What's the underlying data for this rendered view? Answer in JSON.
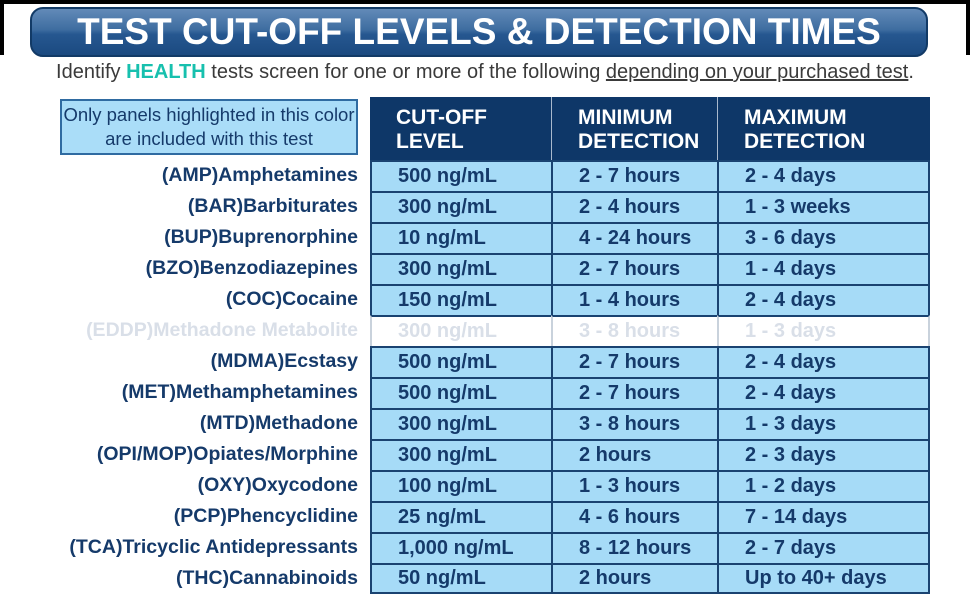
{
  "banner": {
    "title": "TEST CUT-OFF LEVELS & DETECTION TIMES"
  },
  "subtitle": {
    "prefix": "Identify ",
    "brand": "HEALTH",
    "middle": " tests screen for one or more of the following ",
    "underlined": "depending on your purchased test",
    "suffix": "."
  },
  "table": {
    "note": "Only panels highlighted in this color are included with this test",
    "headers": [
      {
        "line1": "CUT-OFF",
        "line2": "LEVEL"
      },
      {
        "line1": "MINIMUM",
        "line2": "DETECTION"
      },
      {
        "line1": "MAXIMUM",
        "line2": "DETECTION"
      }
    ],
    "rows": [
      {
        "name": "(AMP)Amphetamines",
        "cutoff": "500 ng/mL",
        "min": "2 - 7 hours",
        "max": "2 - 4 days",
        "included": true
      },
      {
        "name": "(BAR)Barbiturates",
        "cutoff": "300 ng/mL",
        "min": "2 - 4 hours",
        "max": "1 - 3 weeks",
        "included": true
      },
      {
        "name": "(BUP)Buprenorphine",
        "cutoff": "10 ng/mL",
        "min": "4 - 24 hours",
        "max": "3 - 6 days",
        "included": true
      },
      {
        "name": "(BZO)Benzodiazepines",
        "cutoff": "300 ng/mL",
        "min": "2 - 7 hours",
        "max": "1 - 4 days",
        "included": true
      },
      {
        "name": "(COC)Cocaine",
        "cutoff": "150 ng/mL",
        "min": "1 - 4 hours",
        "max": "2 - 4 days",
        "included": true
      },
      {
        "name": "(EDDP)Methadone Metabolite",
        "cutoff": "300 ng/mL",
        "min": "3 - 8 hours",
        "max": "1 - 3 days",
        "included": false
      },
      {
        "name": "(MDMA)Ecstasy",
        "cutoff": "500 ng/mL",
        "min": "2 - 7 hours",
        "max": "2 - 4 days",
        "included": true
      },
      {
        "name": "(MET)Methamphetamines",
        "cutoff": "500 ng/mL",
        "min": "2 - 7 hours",
        "max": "2 - 4 days",
        "included": true
      },
      {
        "name": "(MTD)Methadone",
        "cutoff": "300 ng/mL",
        "min": "3 - 8 hours",
        "max": "1 - 3 days",
        "included": true
      },
      {
        "name": "(OPI/MOP)Opiates/Morphine",
        "cutoff": "300 ng/mL",
        "min": "2 hours",
        "max": "2 - 3 days",
        "included": true
      },
      {
        "name": "(OXY)Oxycodone",
        "cutoff": "100 ng/mL",
        "min": "1 - 3 hours",
        "max": "1 - 2 days",
        "included": true
      },
      {
        "name": "(PCP)Phencyclidine",
        "cutoff": "25 ng/mL",
        "min": "4 - 6 hours",
        "max": "7 - 14 days",
        "included": true
      },
      {
        "name": "(TCA)Tricyclic Antidepressants",
        "cutoff": "1,000 ng/mL",
        "min": "8 - 12 hours",
        "max": "2 - 7 days",
        "included": true
      },
      {
        "name": "(THC)Cannabinoids",
        "cutoff": "50 ng/mL",
        "min": "2 hours",
        "max": "Up to 40+ days",
        "included": true
      }
    ]
  },
  "colors": {
    "accent_teal": "#17c0ae",
    "header_navy": "#0e3768",
    "cell_blue": "#a6dbf7",
    "line_navy": "#1a4371",
    "text_navy": "#153a6a",
    "excluded_text": "#d9dfe8",
    "excluded_border": "#c9d2dc",
    "banner_top": "#628ab8",
    "banner_bottom": "#1b4a80",
    "banner_border": "#123a66",
    "note_bg": "#aaddf8",
    "note_border": "#2f6ba1",
    "subtitle_color": "#3a3a3a"
  }
}
